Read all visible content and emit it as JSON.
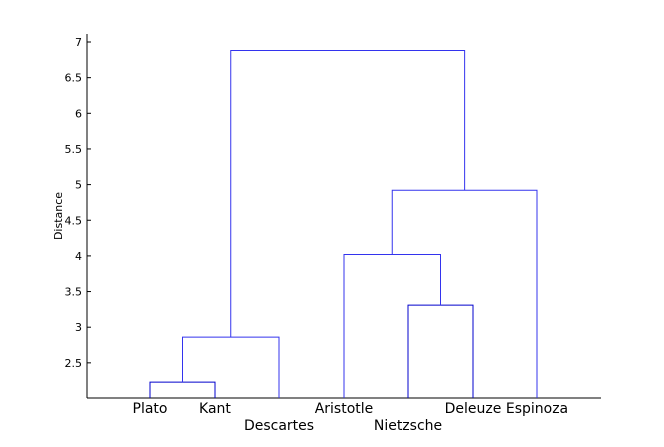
{
  "chart_data": {
    "type": "dendrogram",
    "ylabel": "Distance",
    "ylim": [
      2.05,
      7.1
    ],
    "y_ticks": [
      "2.5",
      "3",
      "3.5",
      "4",
      "4.5",
      "5",
      "5.5",
      "6",
      "6.5",
      "7"
    ],
    "leaves": [
      "Plato",
      "Kant",
      "Descartes",
      "Aristotle",
      "Nietzsche",
      "Deleuze",
      "Espinoza"
    ],
    "merges": [
      {
        "left": "Plato",
        "right": "Kant",
        "distance": 2.23,
        "color": "#0000cc"
      },
      {
        "left": "Nietzsche",
        "right": "Deleuze",
        "distance": 3.31,
        "color": "#0000cc"
      },
      {
        "left": "Plato+Kant",
        "right": "Descartes",
        "distance": 2.86,
        "color": "#3333ee"
      },
      {
        "left": "Aristotle",
        "right": "Nietzsche+Deleuze",
        "distance": 4.02,
        "color": "#3333ee"
      },
      {
        "left": "Aristotle+Nietzsche+Deleuze",
        "right": "Espinoza",
        "distance": 4.92,
        "color": "#3333ee"
      },
      {
        "left": "Plato+Kant+Descartes",
        "right": "Aristotle+Nietzsche+Deleuze+Espinoza",
        "distance": 6.88,
        "color": "#3333ee"
      }
    ],
    "axis_color": "#000000",
    "grid": false
  }
}
